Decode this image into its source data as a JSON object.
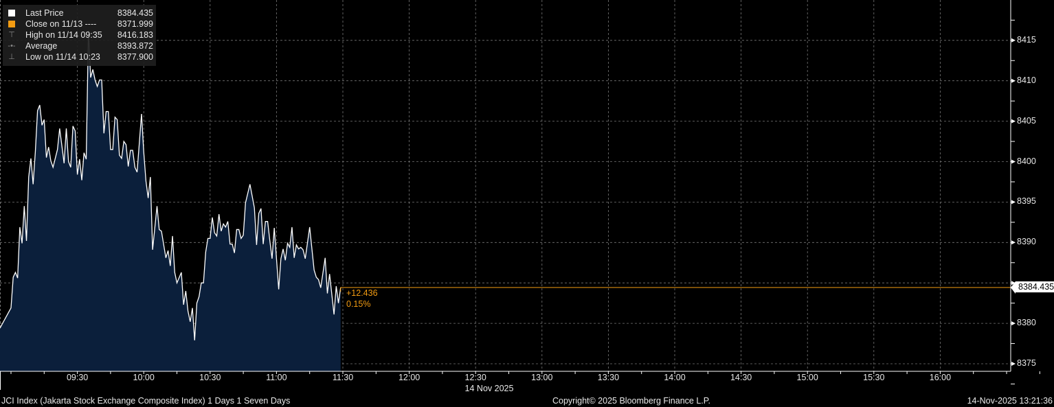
{
  "legend": {
    "rows": [
      {
        "label": "Last Price",
        "value": "8384.435",
        "icon": "white-square"
      },
      {
        "label": "Close on 11/13 ----",
        "value": "8371.999",
        "icon": "orange-square"
      },
      {
        "label": "High on 11/14 09:35",
        "value": "8416.183",
        "icon": "high-marker-icon"
      },
      {
        "label": "Average",
        "value": "8393.872",
        "icon": "average-marker-icon"
      },
      {
        "label": "Low on 11/14 10:23",
        "value": "8377.900",
        "icon": "low-marker-icon"
      }
    ]
  },
  "last_price_label": "8384.435",
  "change": {
    "abs": "+12.436",
    "pct": "0.15%"
  },
  "date_label": "14 Nov 2025",
  "footer": {
    "left": "JCI Index (Jakarta Stock Exchange Composite Index) 1 Days 1 Seven Days",
    "center": "Copyright© 2025 Bloomberg Finance L.P.",
    "right": "14-Nov-2025 13:21:36"
  },
  "colors": {
    "line": "#ffffff",
    "fill": "#0b1f3b",
    "accent": "#f39c12",
    "grid": "#777777"
  },
  "chart_data": {
    "type": "area",
    "grid": true,
    "legend_position": "top-left",
    "y_axis_side": "right",
    "ylim": [
      8374,
      8420
    ],
    "yticks": [
      8375,
      8380,
      8385,
      8390,
      8395,
      8400,
      8405,
      8410,
      8415
    ],
    "xlim": [
      "08:55",
      "16:30"
    ],
    "xticks": [
      "09:30",
      "10:00",
      "10:30",
      "11:00",
      "11:30",
      "12:00",
      "12:30",
      "13:00",
      "13:30",
      "14:00",
      "14:30",
      "15:00",
      "15:30",
      "16:00"
    ],
    "series": [
      {
        "name": "Last Price",
        "points": [
          [
            "08:55",
            8379.4
          ],
          [
            "09:00",
            8381.9
          ],
          [
            "09:01",
            8385.7
          ],
          [
            "09:02",
            8386.3
          ],
          [
            "09:03",
            8385.6
          ],
          [
            "09:04",
            8391.9
          ],
          [
            "09:05",
            8389.9
          ],
          [
            "09:06",
            8394.5
          ],
          [
            "09:07",
            8390.2
          ],
          [
            "09:08",
            8398.1
          ],
          [
            "09:09",
            8400.4
          ],
          [
            "09:10",
            8397.2
          ],
          [
            "09:11",
            8401.2
          ],
          [
            "09:12",
            8406.3
          ],
          [
            "09:13",
            8407.0
          ],
          [
            "09:14",
            8404.5
          ],
          [
            "09:15",
            8405.2
          ],
          [
            "09:16",
            8400.5
          ],
          [
            "09:17",
            8401.8
          ],
          [
            "09:18",
            8400.1
          ],
          [
            "09:19",
            8399.3
          ],
          [
            "09:21",
            8401.5
          ],
          [
            "09:22",
            8404.1
          ],
          [
            "09:24",
            8399.8
          ],
          [
            "09:25",
            8404.1
          ],
          [
            "09:26",
            8400.0
          ],
          [
            "09:27",
            8399.3
          ],
          [
            "09:28",
            8404.4
          ],
          [
            "09:29",
            8403.8
          ],
          [
            "09:30",
            8398.4
          ],
          [
            "09:31",
            8400.3
          ],
          [
            "09:32",
            8397.7
          ],
          [
            "09:33",
            8401.1
          ],
          [
            "09:34",
            8400.3
          ],
          [
            "09:35",
            8416.2
          ],
          [
            "09:36",
            8410.4
          ],
          [
            "09:37",
            8411.4
          ],
          [
            "09:38",
            8410.1
          ],
          [
            "09:39",
            8409.3
          ],
          [
            "09:40",
            8410.1
          ],
          [
            "09:41",
            8410.1
          ],
          [
            "09:42",
            8403.5
          ],
          [
            "09:43",
            8406.2
          ],
          [
            "09:44",
            8406.2
          ],
          [
            "09:45",
            8401.5
          ],
          [
            "09:46",
            8401.5
          ],
          [
            "09:47",
            8405.5
          ],
          [
            "09:48",
            8405.2
          ],
          [
            "09:49",
            8400.8
          ],
          [
            "09:50",
            8400.4
          ],
          [
            "09:51",
            8402.5
          ],
          [
            "09:52",
            8402.1
          ],
          [
            "09:53",
            8399.4
          ],
          [
            "09:54",
            8401.4
          ],
          [
            "09:55",
            8401.4
          ],
          [
            "09:56",
            8399.3
          ],
          [
            "09:57",
            8398.7
          ],
          [
            "09:59",
            8405.9
          ],
          [
            "10:00",
            8401.2
          ],
          [
            "10:01",
            8397.6
          ],
          [
            "10:02",
            8395.5
          ],
          [
            "10:03",
            8398.1
          ],
          [
            "10:04",
            8389.1
          ],
          [
            "10:06",
            8394.5
          ],
          [
            "10:07",
            8391.6
          ],
          [
            "10:08",
            8391.4
          ],
          [
            "10:10",
            8388.1
          ],
          [
            "10:11",
            8389.0
          ],
          [
            "10:12",
            8387.1
          ],
          [
            "10:13",
            8390.8
          ],
          [
            "10:14",
            8386.3
          ],
          [
            "10:15",
            8385.0
          ],
          [
            "10:17",
            8386.3
          ],
          [
            "10:18",
            8382.3
          ],
          [
            "10:19",
            8384.0
          ],
          [
            "10:20",
            8381.5
          ],
          [
            "10:21",
            8380.2
          ],
          [
            "10:22",
            8381.9
          ],
          [
            "10:23",
            8377.9
          ],
          [
            "10:24",
            8382.5
          ],
          [
            "10:25",
            8383.3
          ],
          [
            "10:26",
            8385.0
          ],
          [
            "10:27",
            8385.0
          ],
          [
            "10:28",
            8388.8
          ],
          [
            "10:29",
            8390.5
          ],
          [
            "10:30",
            8390.5
          ],
          [
            "10:31",
            8393.1
          ],
          [
            "10:32",
            8391.2
          ],
          [
            "10:33",
            8390.8
          ],
          [
            "10:34",
            8393.5
          ],
          [
            "10:35",
            8391.4
          ],
          [
            "10:36",
            8392.3
          ],
          [
            "10:37",
            8391.9
          ],
          [
            "10:38",
            8392.6
          ],
          [
            "10:39",
            8389.8
          ],
          [
            "10:40",
            8389.8
          ],
          [
            "10:41",
            8388.7
          ],
          [
            "10:42",
            8391.6
          ],
          [
            "10:43",
            8391.6
          ],
          [
            "10:44",
            8390.5
          ],
          [
            "10:45",
            8390.9
          ],
          [
            "10:46",
            8394.9
          ],
          [
            "10:48",
            8397.2
          ],
          [
            "10:50",
            8394.3
          ],
          [
            "10:51",
            8389.7
          ],
          [
            "10:52",
            8393.6
          ],
          [
            "10:53",
            8394.2
          ],
          [
            "10:54",
            8389.8
          ],
          [
            "10:55",
            8392.6
          ],
          [
            "10:56",
            8392.6
          ],
          [
            "10:57",
            8390.2
          ],
          [
            "10:58",
            8388.0
          ],
          [
            "10:59",
            8391.8
          ],
          [
            "11:01",
            8384.2
          ],
          [
            "11:02",
            8388.0
          ],
          [
            "11:03",
            8389.2
          ],
          [
            "11:04",
            8387.8
          ],
          [
            "11:05",
            8389.9
          ],
          [
            "11:06",
            8389.4
          ],
          [
            "11:07",
            8391.9
          ],
          [
            "11:08",
            8388.1
          ],
          [
            "11:09",
            8389.7
          ],
          [
            "11:10",
            8389.2
          ],
          [
            "11:11",
            8389.4
          ],
          [
            "11:12",
            8389.1
          ],
          [
            "11:13",
            8388.0
          ],
          [
            "11:15",
            8391.9
          ],
          [
            "11:17",
            8386.6
          ],
          [
            "11:18",
            8385.7
          ],
          [
            "11:19",
            8385.4
          ],
          [
            "11:20",
            8384.4
          ],
          [
            "11:22",
            8388.1
          ],
          [
            "11:23",
            8383.7
          ],
          [
            "11:24",
            8386.1
          ],
          [
            "11:26",
            8381.1
          ],
          [
            "11:27",
            8384.6
          ],
          [
            "11:28",
            8382.5
          ],
          [
            "11:29",
            8384.435
          ]
        ]
      }
    ]
  }
}
